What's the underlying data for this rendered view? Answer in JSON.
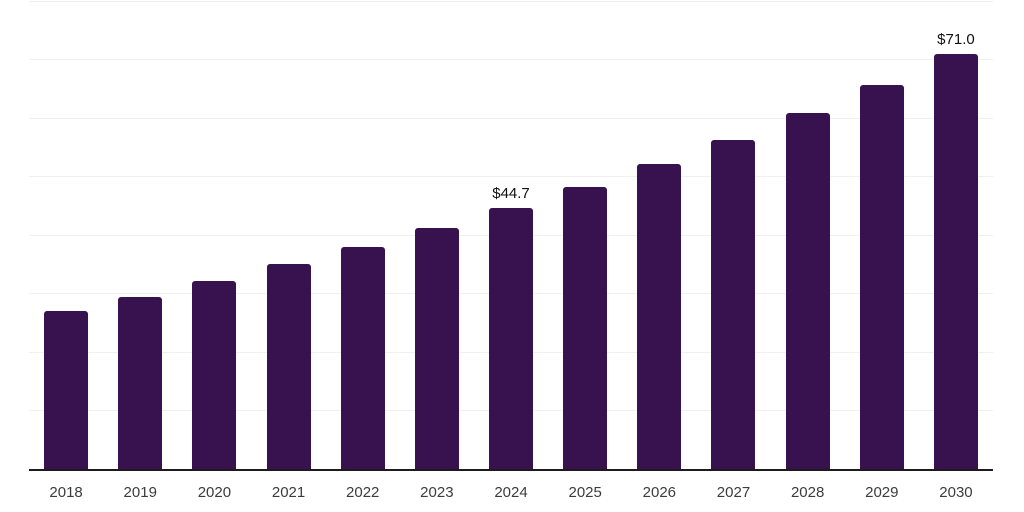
{
  "chart_data": {
    "type": "bar",
    "title": "",
    "xlabel": "",
    "ylabel": "",
    "categories": [
      "2018",
      "2019",
      "2020",
      "2021",
      "2022",
      "2023",
      "2024",
      "2025",
      "2026",
      "2027",
      "2028",
      "2029",
      "2030"
    ],
    "values": [
      27.2,
      29.6,
      32.2,
      35.1,
      38.0,
      41.4,
      44.7,
      48.3,
      52.3,
      56.4,
      61.0,
      65.8,
      71.0
    ],
    "data_labels": {
      "2024": "$44.7",
      "2030": "$71.0"
    },
    "ylim": [
      0,
      80
    ],
    "grid_step": 10,
    "grid": "horizontal",
    "legend": "none",
    "y_tick_labels_visible": false,
    "colors": {
      "bar": "#37124E",
      "gridline": "#f0f0f0",
      "axis_line": "#1c1c1c",
      "tick_label": "#3c3c3c",
      "data_label": "#111111",
      "background": "#ffffff"
    }
  }
}
